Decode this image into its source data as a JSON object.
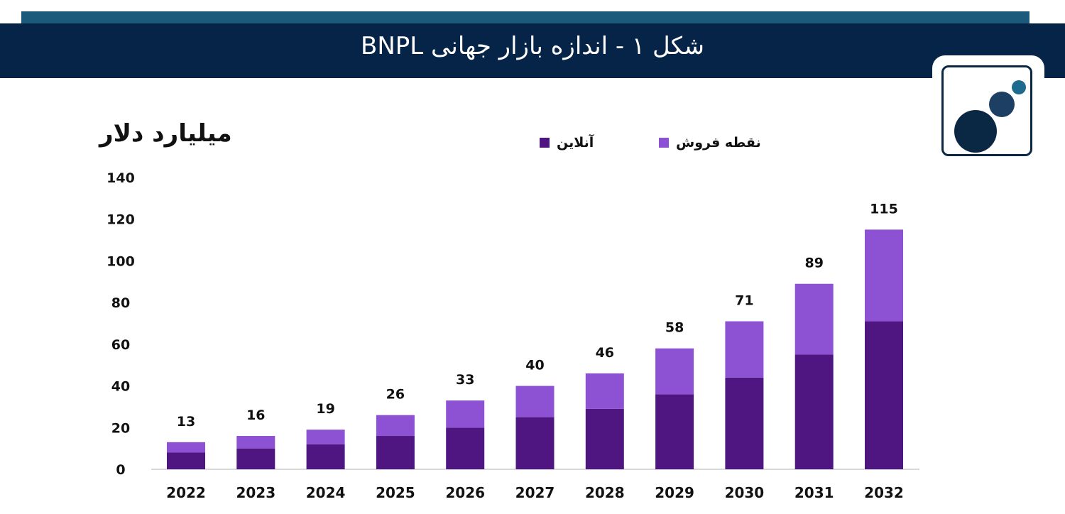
{
  "header": {
    "title": "شکل ۱ - اندازه بازار جهانی BNPL"
  },
  "logo": {
    "icon": "three-circles-logo-icon",
    "colors": [
      "#0a2744",
      "#1c3f63",
      "#1e6b8f"
    ]
  },
  "colors": {
    "top_strip": "#1c5a7c",
    "title_bar": "#062447",
    "online": "#4f1581",
    "pos": "#8d52d3"
  },
  "chart_data": {
    "type": "bar",
    "stacked": true,
    "ylabel": "میلیارد دلار",
    "categories": [
      "2022",
      "2023",
      "2024",
      "2025",
      "2026",
      "2027",
      "2028",
      "2029",
      "2030",
      "2031",
      "2032"
    ],
    "series": [
      {
        "name": "آنلاین",
        "color": "#4f1581",
        "values": [
          8,
          10,
          12,
          16,
          20,
          25,
          29,
          36,
          44,
          55,
          71
        ]
      },
      {
        "name": "نقطه فروش",
        "color": "#8d52d3",
        "values": [
          5,
          6,
          7,
          10,
          13,
          15,
          17,
          22,
          27,
          34,
          44
        ]
      }
    ],
    "totals": [
      13,
      16,
      19,
      26,
      33,
      40,
      46,
      58,
      71,
      89,
      115
    ],
    "yticks": [
      0,
      20,
      40,
      60,
      80,
      100,
      120,
      140
    ],
    "ylim": [
      0,
      140
    ],
    "grid": false,
    "legend": "top-center"
  }
}
